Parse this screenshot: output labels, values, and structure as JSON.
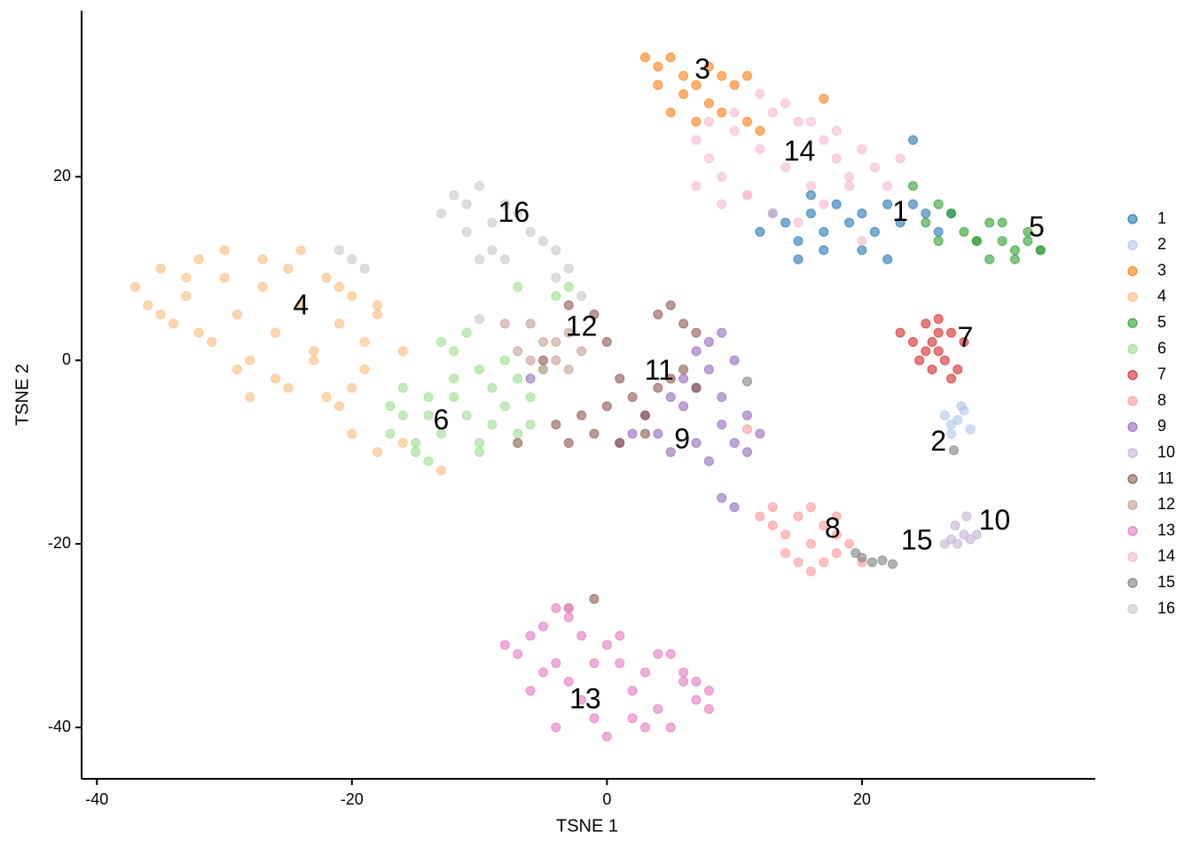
{
  "chart_data": {
    "type": "scatter",
    "xlabel": "TSNE 1",
    "ylabel": "TSNE 2",
    "xlim": [
      -41.2,
      38.3
    ],
    "ylim": [
      -45.6,
      38.1
    ],
    "xticks": [
      -40,
      -20,
      0,
      20
    ],
    "yticks": [
      -40,
      -20,
      0,
      20
    ],
    "series": [
      {
        "name": "1",
        "color": "#1f77b4",
        "x": [
          13,
          14,
          15,
          16,
          17,
          18,
          19,
          20,
          21,
          22,
          23,
          24,
          25,
          26,
          27,
          15,
          17,
          20,
          22,
          12,
          16,
          24
        ],
        "y": [
          16,
          15,
          13,
          16,
          14,
          17,
          15,
          16,
          14,
          17,
          15,
          17,
          16,
          14,
          16,
          11,
          12,
          12,
          11,
          14,
          18,
          24
        ]
      },
      {
        "name": "2",
        "color": "#aec7e8",
        "x": [
          26.5,
          27,
          27.5,
          28,
          28.5,
          27,
          27.8
        ],
        "y": [
          -6,
          -7,
          -6.5,
          -5.5,
          -7.5,
          -8,
          -5
        ]
      },
      {
        "name": "3",
        "color": "#ff7f0e",
        "x": [
          3,
          4,
          5,
          6,
          7,
          8,
          9,
          10,
          11,
          4,
          6,
          8,
          5,
          7,
          9,
          11,
          12,
          17
        ],
        "y": [
          33,
          32,
          33,
          31,
          30,
          32,
          31,
          30,
          31,
          30,
          29,
          28,
          27,
          26,
          27,
          26,
          25,
          28.5
        ]
      },
      {
        "name": "4",
        "color": "#ffbb78",
        "x": [
          -37,
          -36,
          -35,
          -34,
          -33,
          -32,
          -31,
          -30,
          -29,
          -28,
          -27,
          -26,
          -25,
          -24,
          -23,
          -22,
          -21,
          -20,
          -19,
          -18,
          -35,
          -32,
          -29,
          -26,
          -23,
          -20,
          -33,
          -30,
          -27,
          -24,
          -21,
          -18,
          -16,
          -19,
          -21,
          -20,
          -18,
          -16,
          -13,
          -22,
          -25,
          -28
        ],
        "y": [
          8,
          6,
          10,
          4,
          7,
          11,
          2,
          9,
          5,
          0,
          8,
          3,
          10,
          6,
          1,
          9,
          4,
          7,
          2,
          5,
          5,
          3,
          -1,
          -2,
          0,
          -3,
          9,
          12,
          11,
          12,
          8,
          6,
          1,
          -1,
          -5,
          -8,
          -10,
          -9,
          -12,
          -4,
          -3,
          -4
        ]
      },
      {
        "name": "5",
        "color": "#2ca02c",
        "x": [
          25,
          26,
          27,
          28,
          29,
          30,
          31,
          32,
          33,
          34,
          30,
          32,
          34,
          29,
          31,
          33,
          24,
          26
        ],
        "y": [
          15,
          17,
          16,
          14,
          13,
          15,
          13,
          12,
          14,
          12,
          11,
          11,
          12,
          13,
          15,
          13,
          19,
          13
        ]
      },
      {
        "name": "6",
        "color": "#98df8a",
        "x": [
          -17,
          -16,
          -15,
          -14,
          -13,
          -12,
          -11,
          -10,
          -9,
          -8,
          -7,
          -6,
          -5,
          -16,
          -14,
          -12,
          -10,
          -8,
          -6,
          -15,
          -13,
          -11,
          -9,
          -7,
          -17,
          -14,
          -12,
          -10,
          -4,
          -3,
          -7
        ],
        "y": [
          -8,
          -6,
          -10,
          -4,
          -8,
          -2,
          -6,
          -9,
          -3,
          -5,
          -8,
          -4,
          -1,
          -3,
          -11,
          1,
          -1,
          0,
          -7,
          -9,
          2,
          3,
          -7,
          -2,
          -5,
          -6,
          -4,
          -10,
          7,
          8,
          8
        ]
      },
      {
        "name": "7",
        "color": "#d62728",
        "x": [
          23,
          24,
          25,
          26,
          27,
          28,
          24.5,
          25.5,
          26.5,
          27.5,
          25,
          26,
          27,
          26,
          25.5
        ],
        "y": [
          3,
          2,
          4,
          1,
          3,
          2,
          0,
          -1,
          0,
          -1,
          1,
          3,
          -2,
          4.5,
          2
        ]
      },
      {
        "name": "8",
        "color": "#ff9896",
        "x": [
          12,
          13,
          14,
          15,
          16,
          17,
          18,
          19,
          20,
          14,
          15,
          16,
          17,
          18,
          13,
          16,
          18,
          11
        ],
        "y": [
          -17,
          -18,
          -19,
          -17,
          -20,
          -18,
          -21,
          -20,
          -22,
          -21,
          -22,
          -23,
          -22,
          -19,
          -16,
          -16,
          -17,
          -7.5
        ]
      },
      {
        "name": "9",
        "color": "#9467bd",
        "x": [
          3,
          4,
          5,
          6,
          7,
          8,
          9,
          10,
          11,
          12,
          5,
          7,
          9,
          11,
          8,
          9,
          10,
          7,
          6,
          8,
          9,
          10,
          -6,
          1,
          2
        ],
        "y": [
          -6,
          -8,
          -10,
          -5,
          -9,
          -11,
          -7,
          -9,
          -6,
          -8,
          -4,
          -3,
          -4,
          -10,
          2,
          3,
          0,
          1,
          -2,
          -1,
          -15,
          -16,
          -2,
          -9,
          -8
        ]
      },
      {
        "name": "10",
        "color": "#c5b0d5",
        "x": [
          26.5,
          27,
          27.5,
          28,
          28.5,
          29,
          27.3,
          28.2
        ],
        "y": [
          -20,
          -19.5,
          -20,
          -19,
          -19.5,
          -19,
          -18,
          -17
        ]
      },
      {
        "name": "11",
        "color": "#8c564b",
        "x": [
          -4,
          -3,
          -2,
          -1,
          0,
          1,
          2,
          3,
          4,
          5,
          6,
          7,
          3,
          4,
          5,
          6,
          -3,
          -1,
          1,
          0,
          -5,
          -7,
          7,
          -1
        ],
        "y": [
          -7,
          -9,
          -6,
          -8,
          -5,
          -9,
          -4,
          -6,
          -3,
          -2,
          -1,
          -3,
          -8,
          5,
          6,
          4,
          6,
          5,
          -2,
          2,
          0,
          -9,
          3,
          -26
        ]
      },
      {
        "name": "12",
        "color": "#c49c94",
        "x": [
          -7,
          -6,
          -5,
          -4,
          -3,
          -2,
          -6,
          -4,
          -3,
          -5,
          -8,
          -3
        ],
        "y": [
          1,
          0,
          2,
          0,
          3,
          1,
          4,
          2,
          -1,
          -1,
          4,
          -27
        ]
      },
      {
        "name": "13",
        "color": "#e377c2",
        "x": [
          -8,
          -7,
          -6,
          -5,
          -4,
          -3,
          -2,
          -1,
          0,
          1,
          2,
          3,
          4,
          5,
          6,
          7,
          8,
          -6,
          -4,
          -2,
          0,
          2,
          4,
          6,
          8,
          -5,
          -3,
          -1,
          1,
          3,
          5,
          7,
          -3,
          -4
        ],
        "y": [
          -31,
          -32,
          -30,
          -34,
          -33,
          -35,
          -37,
          -39,
          -31,
          -33,
          -36,
          -40,
          -38,
          -32,
          -34,
          -37,
          -36,
          -36,
          -40,
          -30,
          -41,
          -39,
          -32,
          -35,
          -38,
          -29,
          -28,
          -33,
          -30,
          -34,
          -40,
          -35,
          -27,
          -27
        ]
      },
      {
        "name": "14",
        "color": "#f7b6d2",
        "x": [
          7,
          8,
          9,
          10,
          11,
          12,
          13,
          14,
          15,
          16,
          17,
          18,
          19,
          20,
          21,
          22,
          9,
          11,
          13,
          15,
          17,
          19,
          12,
          14,
          16,
          18,
          10,
          8,
          7,
          20,
          23
        ],
        "y": [
          24,
          22,
          20,
          25,
          18,
          23,
          27,
          21,
          26,
          19,
          24,
          22,
          20,
          23,
          21,
          19,
          17,
          18,
          16,
          15,
          17,
          19,
          29,
          28,
          26,
          25,
          27,
          26,
          19,
          13,
          22
        ]
      },
      {
        "name": "15",
        "color": "#7f7f7f",
        "x": [
          20,
          20.8,
          21.6,
          22.4,
          19.5,
          11,
          27.2
        ],
        "y": [
          -21.5,
          -22,
          -21.8,
          -22.2,
          -21,
          -2.3,
          -9.8
        ]
      },
      {
        "name": "16",
        "color": "#c7c7c7",
        "x": [
          -13,
          -12,
          -11,
          -10,
          -9,
          -8,
          -7,
          -11,
          -9,
          -6,
          -5,
          -4,
          -3,
          -10,
          -8,
          -20,
          -19,
          -21,
          -4,
          -2,
          -10
        ],
        "y": [
          16,
          18,
          17,
          19,
          15,
          17,
          16,
          14,
          12,
          14,
          13,
          12,
          10,
          11,
          11,
          11,
          10,
          12,
          9,
          7,
          4.5
        ]
      }
    ],
    "annotations": [
      {
        "text": "1",
        "x": 23,
        "y": 16
      },
      {
        "text": "2",
        "x": 26,
        "y": -9
      },
      {
        "text": "3",
        "x": 7.5,
        "y": 31.5
      },
      {
        "text": "4",
        "x": -24,
        "y": 5.8
      },
      {
        "text": "5",
        "x": 33.7,
        "y": 14.3
      },
      {
        "text": "6",
        "x": -13,
        "y": -6.7
      },
      {
        "text": "7",
        "x": 28.1,
        "y": 2.3
      },
      {
        "text": "8",
        "x": 17.7,
        "y": -18.5
      },
      {
        "text": "9",
        "x": 5.9,
        "y": -8.8
      },
      {
        "text": "10",
        "x": 30.4,
        "y": -17.6
      },
      {
        "text": "11",
        "x": 4.1,
        "y": -1.3
      },
      {
        "text": "12",
        "x": -2,
        "y": 3.5
      },
      {
        "text": "13",
        "x": -1.7,
        "y": -37.1
      },
      {
        "text": "14",
        "x": 15.1,
        "y": 22.6
      },
      {
        "text": "15",
        "x": 24.3,
        "y": -19.8
      },
      {
        "text": "16",
        "x": -7.3,
        "y": 15.9
      }
    ]
  }
}
